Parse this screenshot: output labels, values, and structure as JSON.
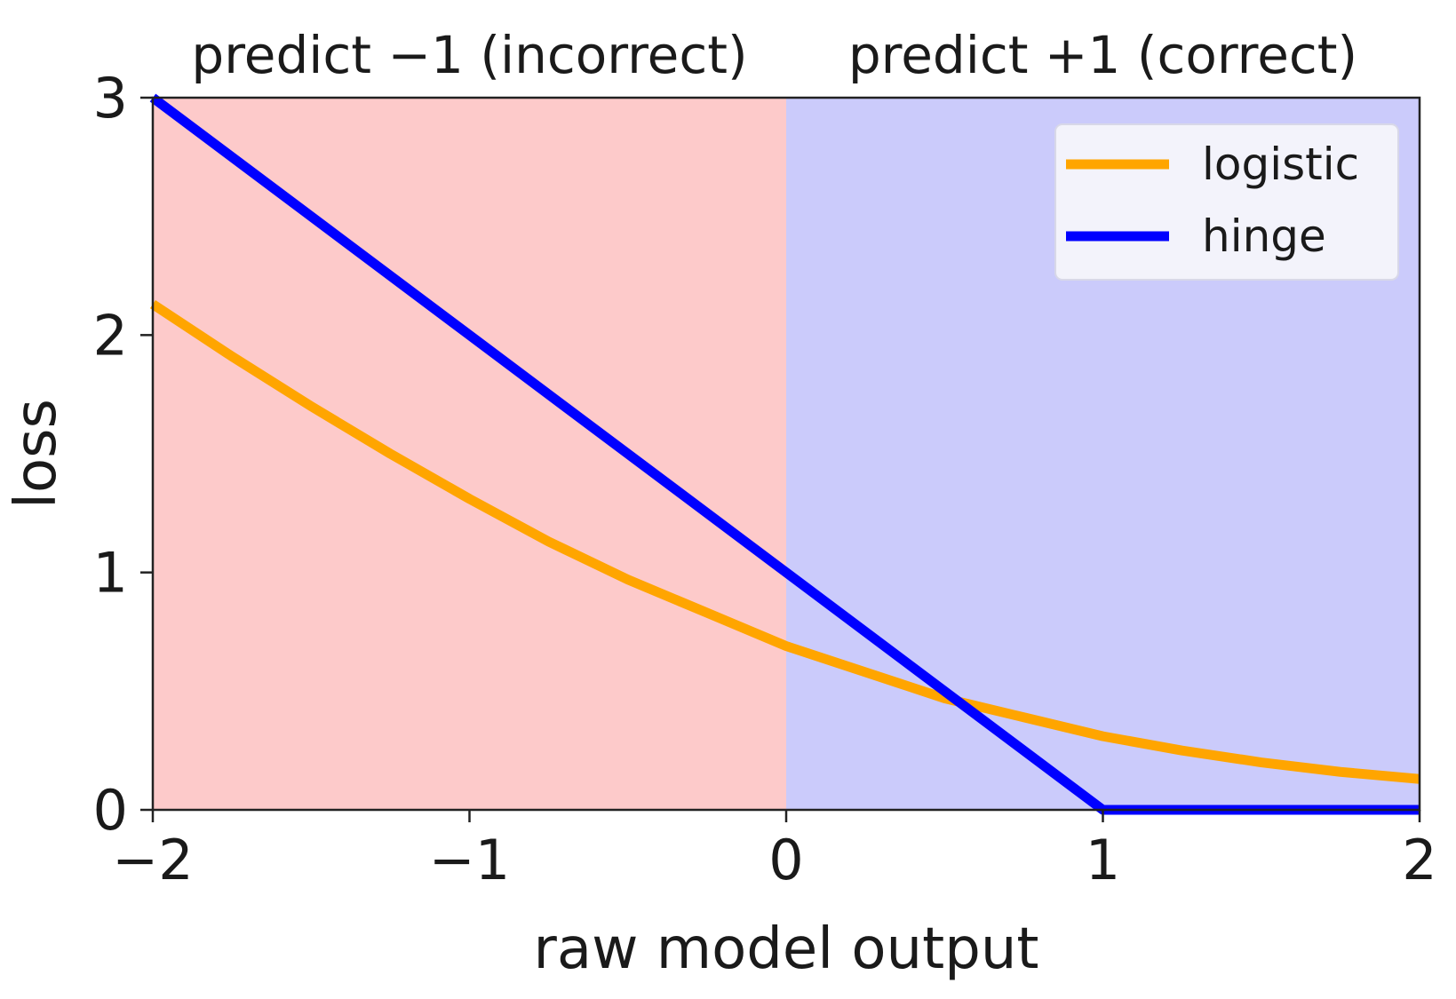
{
  "chart_data": {
    "type": "line",
    "xlabel": "raw model output",
    "ylabel": "loss",
    "xlim": [
      -2,
      2
    ],
    "ylim": [
      0,
      3
    ],
    "xticks": [
      -2,
      -1,
      0,
      1,
      2
    ],
    "xtick_labels": [
      "−2",
      "−1",
      "0",
      "1",
      "2"
    ],
    "yticks": [
      0,
      1,
      2,
      3
    ],
    "ytick_labels": [
      "0",
      "1",
      "2",
      "3"
    ],
    "grid": false,
    "legend_position": "top-right",
    "regions": [
      {
        "label": "predict −1 (incorrect)",
        "x_range": [
          -2,
          0
        ],
        "color": "#fdcaca"
      },
      {
        "label": "predict +1 (correct)",
        "x_range": [
          0,
          2
        ],
        "color": "#cbcbfb"
      }
    ],
    "series": [
      {
        "name": "logistic",
        "color": "#ffa500",
        "x": [
          -2,
          -1.75,
          -1.5,
          -1.25,
          -1,
          -0.75,
          -0.5,
          -0.25,
          0,
          0.25,
          0.5,
          0.75,
          1,
          1.25,
          1.5,
          1.75,
          2
        ],
        "y": [
          2.13,
          1.91,
          1.7,
          1.5,
          1.31,
          1.13,
          0.97,
          0.83,
          0.69,
          0.58,
          0.47,
          0.39,
          0.31,
          0.25,
          0.2,
          0.16,
          0.13
        ]
      },
      {
        "name": "hinge",
        "color": "#0000ff",
        "x": [
          -2,
          1,
          2
        ],
        "y": [
          3,
          0,
          0
        ]
      }
    ]
  }
}
